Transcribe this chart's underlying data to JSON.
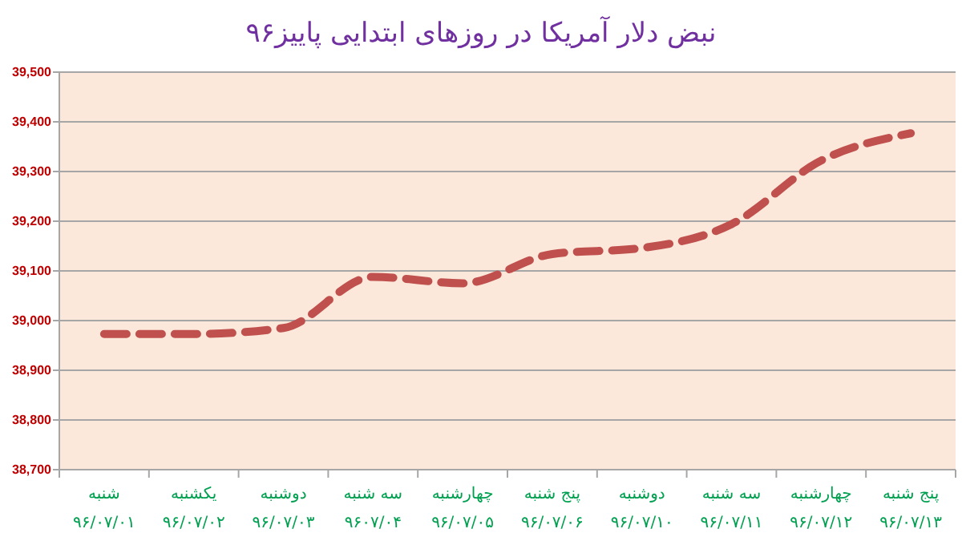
{
  "chart_data": {
    "type": "line",
    "title": "نبض دلار آمریکا در روزهای ابتدایی پاییز۹۶",
    "categories": [
      "شنبه\n۹۶/۰۷/۰۱",
      "یکشنبه\n۹۶/۰۷/۰۲",
      "دوشنبه\n۹۶/۰۷/۰۳",
      "سه شنبه\n۹۶۰۷/۰۴",
      "چهارشنبه\n۹۶/۰۷/۰۵",
      "پنج شنبه\n۹۶/۰۷/۰۶",
      "دوشنبه\n۹۶/۰۷/۱۰",
      "سه شنبه\n۹۶/۰۷/۱۱",
      "چهارشنبه\n۹۶/۰۷/۱۲",
      "پنج شنبه\n۹۶/۰۷/۱۳"
    ],
    "series": [
      {
        "color": "#c0504d",
        "values": [
          38973,
          38973,
          38985,
          39088,
          39075,
          39134,
          39146,
          39194,
          39322,
          39377
        ]
      }
    ],
    "ylim": [
      38700,
      39500
    ],
    "yticks": [
      {
        "value": 38700,
        "label": "38,700"
      },
      {
        "value": 38800,
        "label": "38,800"
      },
      {
        "value": 38900,
        "label": "38,900"
      },
      {
        "value": 39000,
        "label": "39,000"
      },
      {
        "value": 39100,
        "label": "39,100"
      },
      {
        "value": 39200,
        "label": "39,200"
      },
      {
        "value": 39300,
        "label": "39,300"
      },
      {
        "value": 39400,
        "label": "39,400"
      },
      {
        "value": 39500,
        "label": "39,500"
      }
    ],
    "grid": "y",
    "marker": "none",
    "line_style": "dashed"
  }
}
